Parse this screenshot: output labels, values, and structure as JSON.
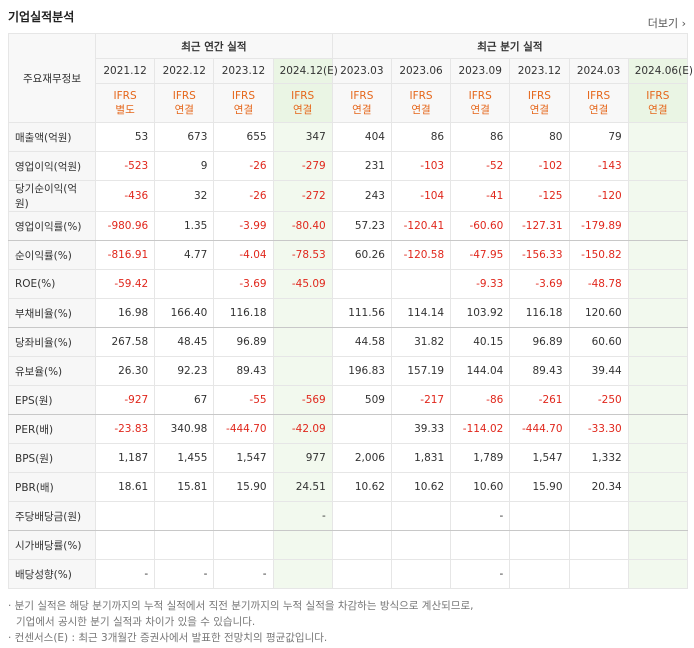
{
  "header": {
    "title": "기업실적분석",
    "more": "더보기"
  },
  "table": {
    "corner": "주요재무정보",
    "groups": [
      "최근 연간 실적",
      "최근 분기 실적"
    ],
    "group_spans": [
      4,
      6
    ],
    "periods": [
      "2021.12",
      "2022.12",
      "2023.12",
      "2024.12(E)",
      "2023.03",
      "2023.06",
      "2023.09",
      "2023.12",
      "2024.03",
      "2024.06(E)"
    ],
    "estimate_columns": [
      3,
      9
    ],
    "standards": [
      [
        "IFRS",
        "별도"
      ],
      [
        "IFRS",
        "연결"
      ],
      [
        "IFRS",
        "연결"
      ],
      [
        "IFRS",
        "연결"
      ],
      [
        "IFRS",
        "연결"
      ],
      [
        "IFRS",
        "연결"
      ],
      [
        "IFRS",
        "연결"
      ],
      [
        "IFRS",
        "연결"
      ],
      [
        "IFRS",
        "연결"
      ],
      [
        "IFRS",
        "연결"
      ]
    ],
    "group_breaks": [
      3,
      6,
      9,
      13
    ],
    "rows": [
      [
        "매출액(억원)",
        "53",
        "673",
        "655",
        "347",
        "404",
        "86",
        "86",
        "80",
        "79",
        null
      ],
      [
        "영업이익(억원)",
        "-523",
        "9",
        "-26",
        "-279",
        "231",
        "-103",
        "-52",
        "-102",
        "-143",
        null
      ],
      [
        "당기순이익(억원)",
        "-436",
        "32",
        "-26",
        "-272",
        "243",
        "-104",
        "-41",
        "-125",
        "-120",
        null
      ],
      [
        "영업이익률(%)",
        "-980.96",
        "1.35",
        "-3.99",
        "-80.40",
        "57.23",
        "-120.41",
        "-60.60",
        "-127.31",
        "-179.89",
        null
      ],
      [
        "순이익률(%)",
        "-816.91",
        "4.77",
        "-4.04",
        "-78.53",
        "60.26",
        "-120.58",
        "-47.95",
        "-156.33",
        "-150.82",
        null
      ],
      [
        "ROE(%)",
        "-59.42",
        null,
        "-3.69",
        "-45.09",
        null,
        null,
        "-9.33",
        "-3.69",
        "-48.78",
        null
      ],
      [
        "부채비율(%)",
        "16.98",
        "166.40",
        "116.18",
        null,
        "111.56",
        "114.14",
        "103.92",
        "116.18",
        "120.60",
        null
      ],
      [
        "당좌비율(%)",
        "267.58",
        "48.45",
        "96.89",
        null,
        "44.58",
        "31.82",
        "40.15",
        "96.89",
        "60.60",
        null
      ],
      [
        "유보율(%)",
        "26.30",
        "92.23",
        "89.43",
        null,
        "196.83",
        "157.19",
        "144.04",
        "89.43",
        "39.44",
        null
      ],
      [
        "EPS(원)",
        "-927",
        "67",
        "-55",
        "-569",
        "509",
        "-217",
        "-86",
        "-261",
        "-250",
        null
      ],
      [
        "PER(배)",
        "-23.83",
        "340.98",
        "-444.70",
        "-42.09",
        null,
        "39.33",
        "-114.02",
        "-444.70",
        "-33.30",
        null
      ],
      [
        "BPS(원)",
        "1,187",
        "1,455",
        "1,547",
        "977",
        "2,006",
        "1,831",
        "1,789",
        "1,547",
        "1,332",
        null
      ],
      [
        "PBR(배)",
        "18.61",
        "15.81",
        "15.90",
        "24.51",
        "10.62",
        "10.62",
        "10.60",
        "15.90",
        "20.34",
        null
      ],
      [
        "주당배당금(원)",
        null,
        null,
        null,
        "-",
        null,
        null,
        "-",
        null,
        null,
        null
      ],
      [
        "시가배당률(%)",
        null,
        null,
        null,
        null,
        null,
        null,
        null,
        null,
        null,
        null
      ],
      [
        "배당성향(%)",
        "-",
        "-",
        "-",
        null,
        null,
        null,
        "-",
        null,
        null,
        null
      ]
    ]
  },
  "notes": [
    "· 분기 실적은 해당 분기까지의 누적 실적에서 직전 분기까지의 누적 실적을 차감하는 방식으로 계산되므로,",
    "기업에서 공시한 분기 실적과 차이가 있을 수 있습니다.",
    "· 컨센서스(E) : 최근 3개월간 증권사에서 발표한 전망치의 평균값입니다."
  ]
}
